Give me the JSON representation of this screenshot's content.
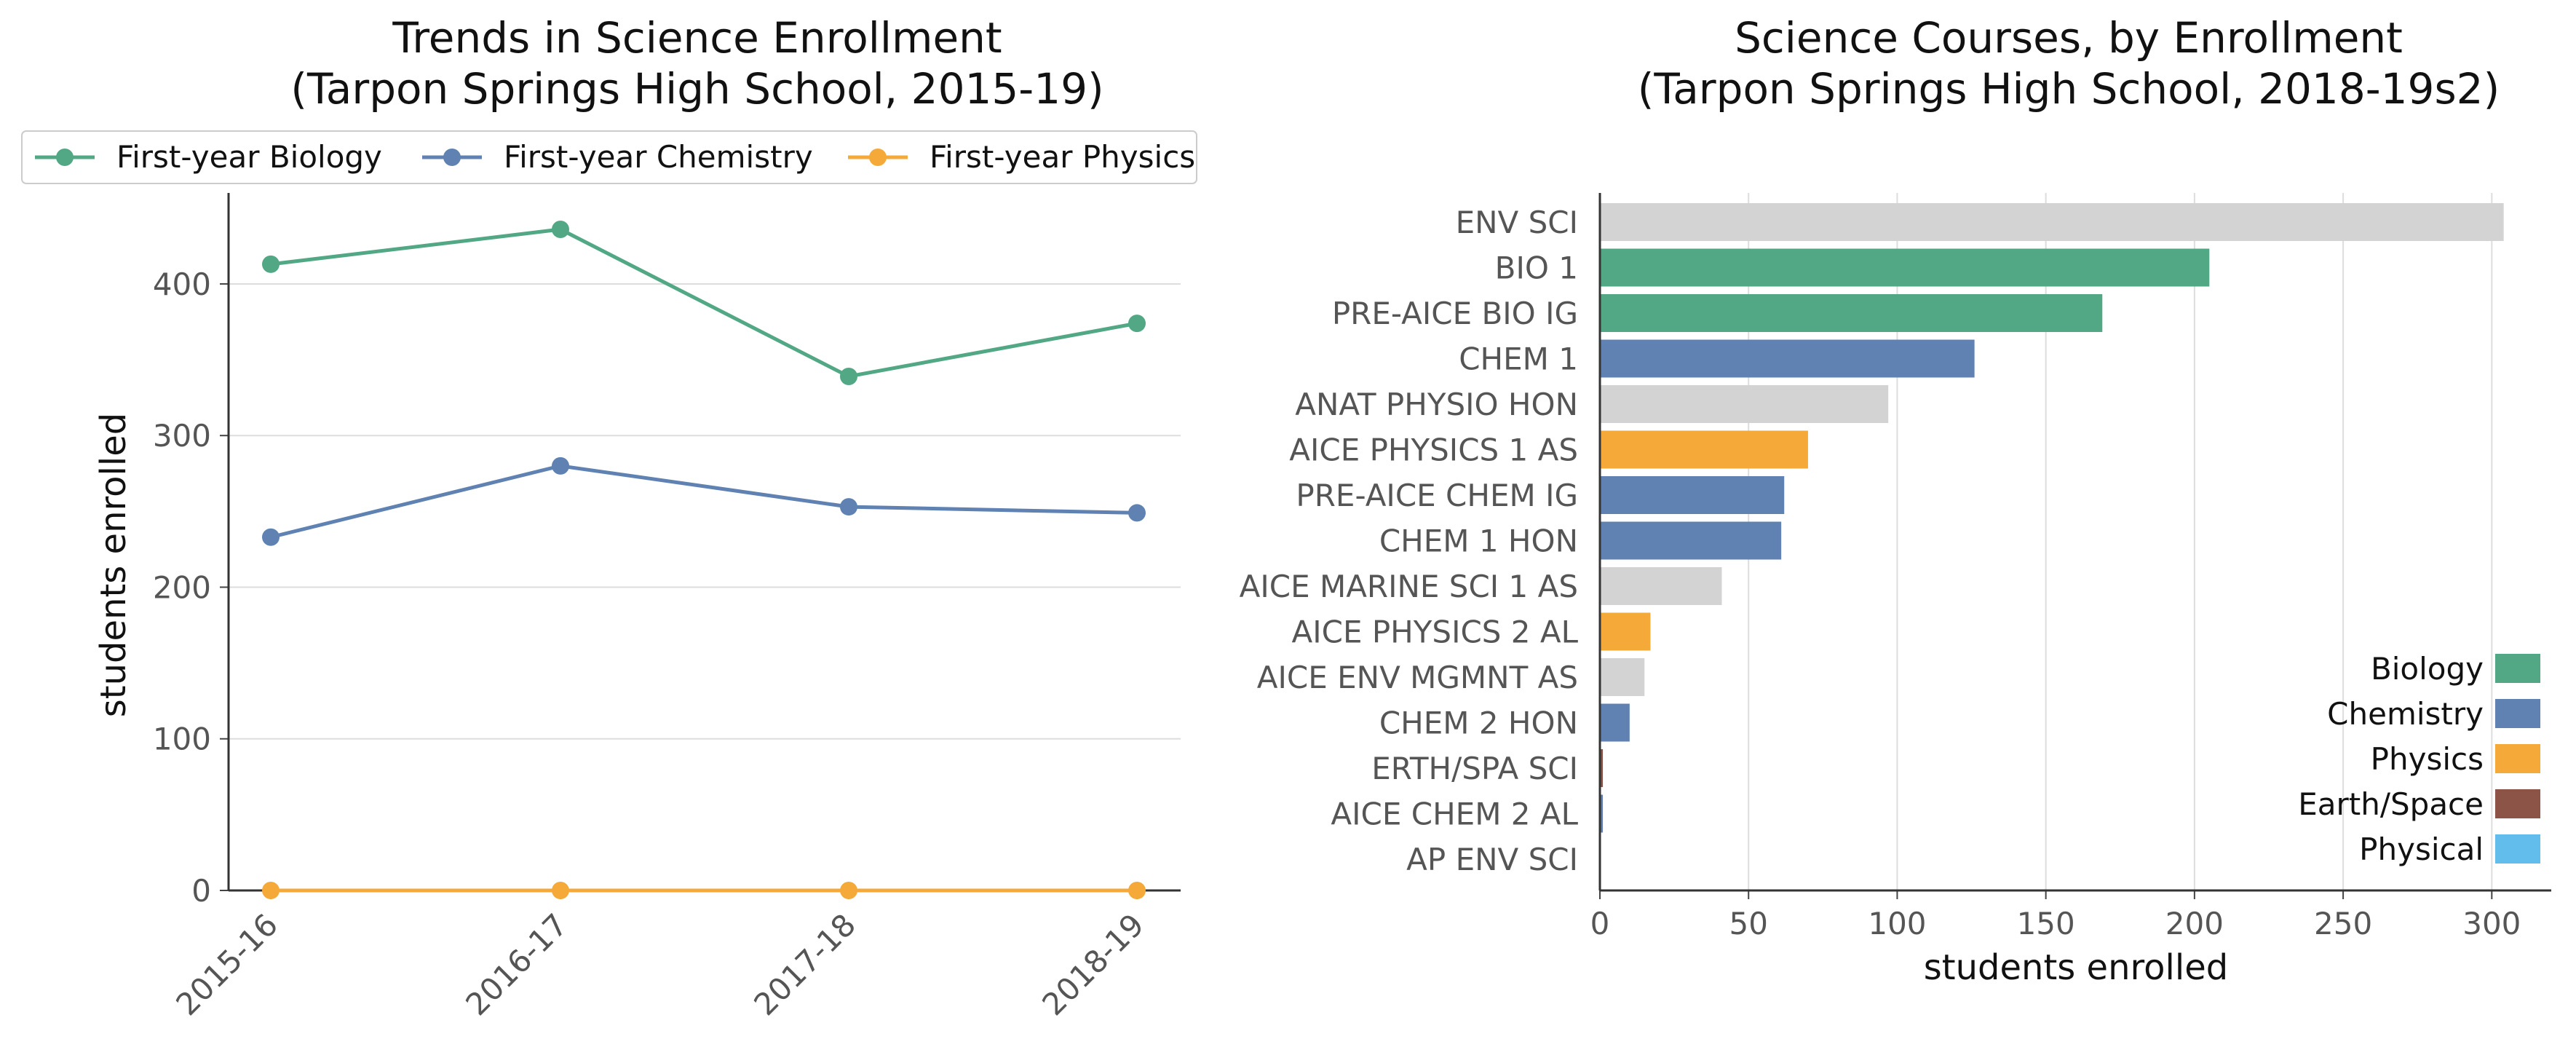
{
  "chart_data": [
    {
      "type": "line",
      "title": "Trends in Science Enrollment",
      "subtitle": "(Tarpon Springs High School, 2015-19)",
      "xlabel": "",
      "ylabel": "students enrolled",
      "x": [
        "2015-16",
        "2016-17",
        "2017-18",
        "2018-19"
      ],
      "ylim": [
        0,
        460
      ],
      "yticks": [
        0,
        100,
        200,
        300,
        400
      ],
      "grid": "horizontal",
      "legend": "top",
      "series": [
        {
          "name": "First-year Biology",
          "color": "#52a884",
          "values": [
            413,
            436,
            339,
            374
          ]
        },
        {
          "name": "First-year Chemistry",
          "color": "#5f82b2",
          "values": [
            233,
            280,
            253,
            249
          ]
        },
        {
          "name": "First-year Physics",
          "color": "#f5a938",
          "values": [
            0,
            0,
            0,
            0
          ]
        }
      ]
    },
    {
      "type": "bar",
      "orientation": "horizontal",
      "title": "Science Courses, by Enrollment",
      "subtitle": "(Tarpon Springs High School, 2018-19s2)",
      "xlabel": "students enrolled",
      "ylabel": "",
      "xlim": [
        0,
        320
      ],
      "xticks": [
        0,
        50,
        100,
        150,
        200,
        250,
        300
      ],
      "grid": "vertical",
      "legend": "bottom-right",
      "legend_entries": [
        {
          "name": "Biology",
          "color": "#52a884"
        },
        {
          "name": "Chemistry",
          "color": "#5f82b2"
        },
        {
          "name": "Physics",
          "color": "#f5a938"
        },
        {
          "name": "Earth/Space",
          "color": "#8b5446"
        },
        {
          "name": "Physical",
          "color": "#62bdec"
        }
      ],
      "other_color": "#d3d3d3",
      "bars": [
        {
          "label": "ENV SCI",
          "value": 304,
          "category": "Other"
        },
        {
          "label": "BIO 1",
          "value": 205,
          "category": "Biology"
        },
        {
          "label": "PRE-AICE BIO IG",
          "value": 169,
          "category": "Biology"
        },
        {
          "label": "CHEM 1",
          "value": 126,
          "category": "Chemistry"
        },
        {
          "label": "ANAT PHYSIO HON",
          "value": 97,
          "category": "Other"
        },
        {
          "label": "AICE PHYSICS 1 AS",
          "value": 70,
          "category": "Physics"
        },
        {
          "label": "PRE-AICE CHEM IG",
          "value": 62,
          "category": "Chemistry"
        },
        {
          "label": "CHEM 1 HON",
          "value": 61,
          "category": "Chemistry"
        },
        {
          "label": "AICE MARINE SCI 1 AS",
          "value": 41,
          "category": "Other"
        },
        {
          "label": "AICE PHYSICS 2 AL",
          "value": 17,
          "category": "Physics"
        },
        {
          "label": "AICE ENV MGMNT AS",
          "value": 15,
          "category": "Other"
        },
        {
          "label": "CHEM 2 HON",
          "value": 10,
          "category": "Chemistry"
        },
        {
          "label": "ERTH/SPA SCI",
          "value": 1,
          "category": "Earth/Space"
        },
        {
          "label": "AICE CHEM 2 AL",
          "value": 1,
          "category": "Chemistry"
        },
        {
          "label": "AP ENV SCI",
          "value": 0,
          "category": "Other"
        }
      ]
    }
  ]
}
